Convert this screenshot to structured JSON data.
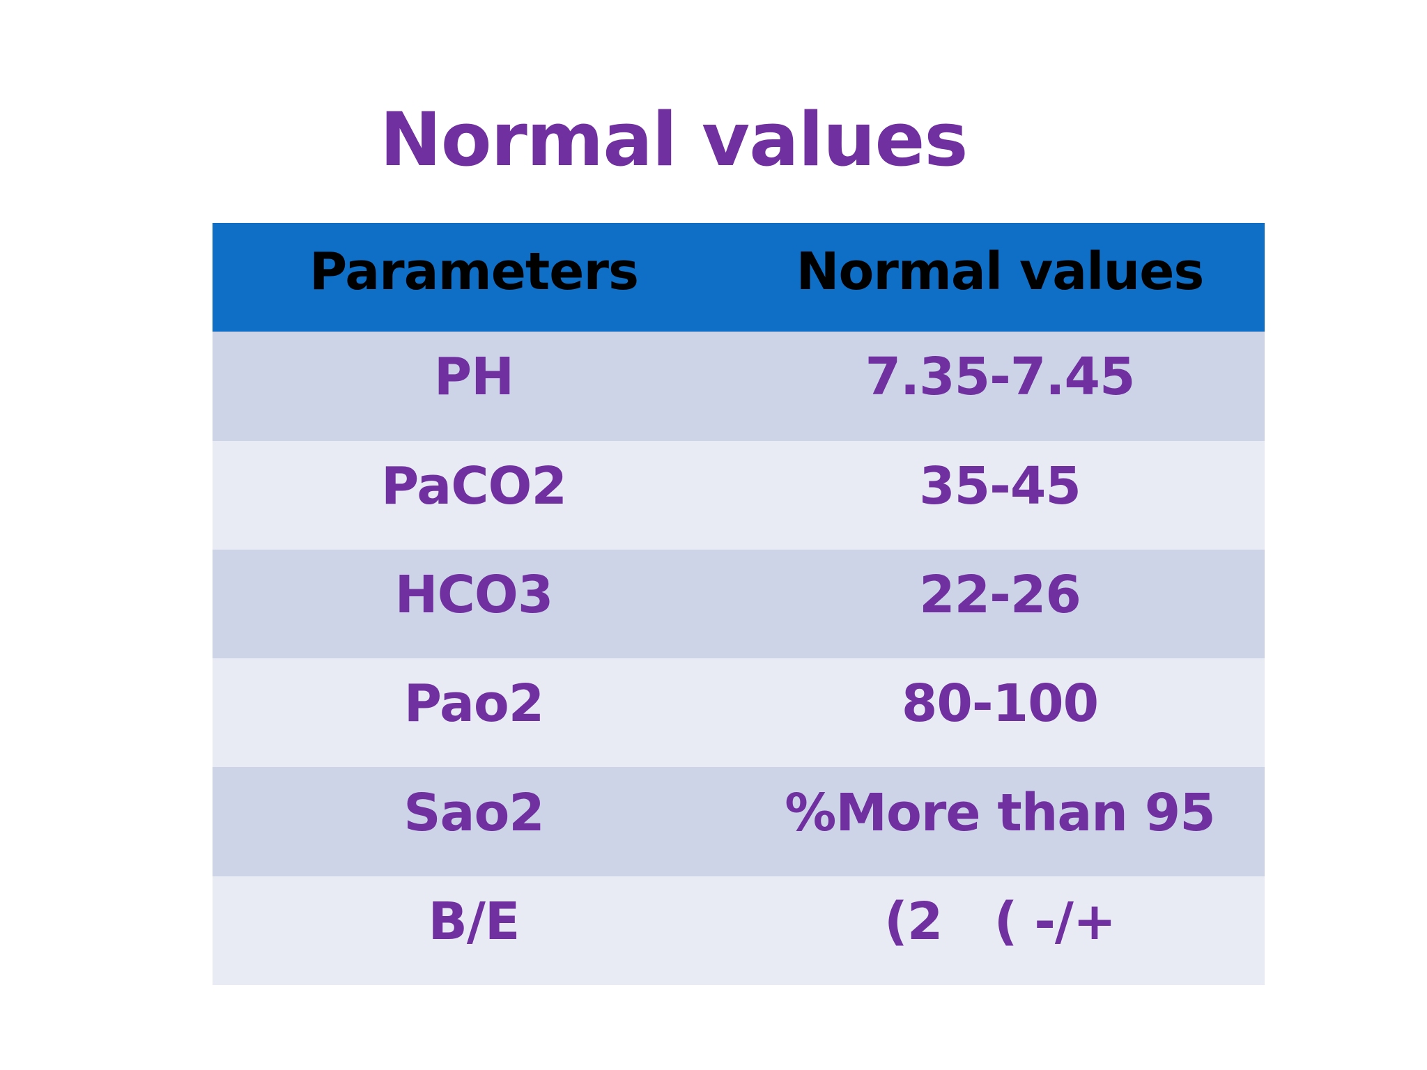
{
  "slide": {
    "title": "Normal values"
  },
  "table": {
    "headers": [
      "Parameters",
      "Normal values"
    ],
    "rows": [
      {
        "parameter": "PH",
        "value": "7.35-7.45"
      },
      {
        "parameter": "PaCO2",
        "value": "35-45"
      },
      {
        "parameter": "HCO3",
        "value": "22-26"
      },
      {
        "parameter": "Pao2",
        "value": "80-100"
      },
      {
        "parameter": "Sao2",
        "value": "%More than 95"
      },
      {
        "parameter": "B/E",
        "value": "(2   ( -/+"
      }
    ]
  },
  "colors": {
    "title": "#7030a0",
    "header_bg": "#0f6fc6",
    "header_text": "#000000",
    "row_odd_bg": "#cdd4e8",
    "row_even_bg": "#e8ebf4",
    "cell_text": "#7030a0"
  }
}
